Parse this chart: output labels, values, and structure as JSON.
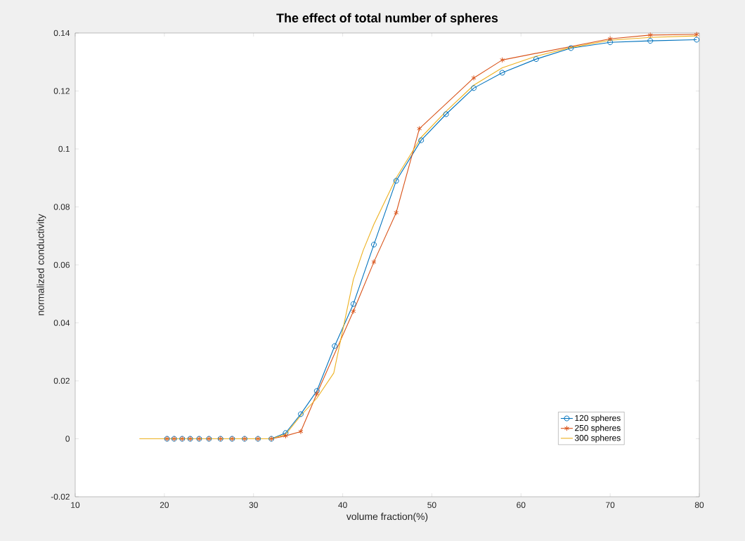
{
  "chart_data": {
    "type": "line",
    "title": "The effect of total number of spheres",
    "xlabel": "volume fraction(%)",
    "ylabel": "normalized conductivity",
    "xlim": [
      10,
      80
    ],
    "ylim": [
      -0.02,
      0.14
    ],
    "xticks": [
      10,
      20,
      30,
      40,
      50,
      60,
      70,
      80
    ],
    "yticks": [
      -0.02,
      0,
      0.02,
      0.04,
      0.06,
      0.08,
      0.1,
      0.12,
      0.14
    ],
    "grid": false,
    "legend": "bottom right",
    "series": [
      {
        "name": "120 spheres",
        "color": "#0072bd",
        "marker": "circle",
        "x": [
          20.3,
          21.1,
          22,
          22.9,
          23.9,
          25,
          26.3,
          27.6,
          29,
          30.5,
          32,
          33.6,
          35.3,
          37.1,
          39.1,
          41.2,
          43.5,
          46,
          48.8,
          51.6,
          54.7,
          57.9,
          61.7,
          65.6,
          70,
          74.5,
          79.7
        ],
        "values": [
          0,
          0,
          0,
          0,
          0,
          0,
          0,
          0,
          0,
          0,
          0,
          0.002,
          0.0085,
          0.0165,
          0.032,
          0.0465,
          0.067,
          0.089,
          0.103,
          0.112,
          0.121,
          0.1263,
          0.131,
          0.1348,
          0.1368,
          0.1373,
          0.1377
        ]
      },
      {
        "name": "250 spheres",
        "color": "#d95319",
        "marker": "cross",
        "x": [
          20.3,
          21.1,
          22,
          22.9,
          23.9,
          25,
          26.3,
          27.6,
          29,
          30.5,
          32,
          33.6,
          35.3,
          37.1,
          41.2,
          43.5,
          46,
          48.6,
          54.7,
          57.9,
          70,
          74.5,
          79.7
        ],
        "values": [
          0,
          0,
          0,
          0,
          0,
          0,
          0,
          0,
          0,
          0,
          0,
          0.001,
          0.0025,
          0.0155,
          0.044,
          0.061,
          0.078,
          0.107,
          0.1245,
          0.1307,
          0.138,
          0.1393,
          0.1395
        ]
      },
      {
        "name": "300 spheres",
        "color": "#edb120",
        "marker": "none",
        "x": [
          17.2,
          32,
          33.6,
          35.3,
          37.1,
          39,
          41.2,
          42.3,
          43.5,
          46,
          48.8,
          51.6,
          54.7,
          57.9,
          61.7,
          65.6,
          70,
          74.5,
          79.7
        ],
        "values": [
          0,
          0,
          0.0015,
          0.008,
          0.014,
          0.0227,
          0.055,
          0.065,
          0.074,
          0.09,
          0.104,
          0.113,
          0.122,
          0.128,
          0.132,
          0.135,
          0.1375,
          0.1385,
          0.139
        ]
      }
    ]
  }
}
